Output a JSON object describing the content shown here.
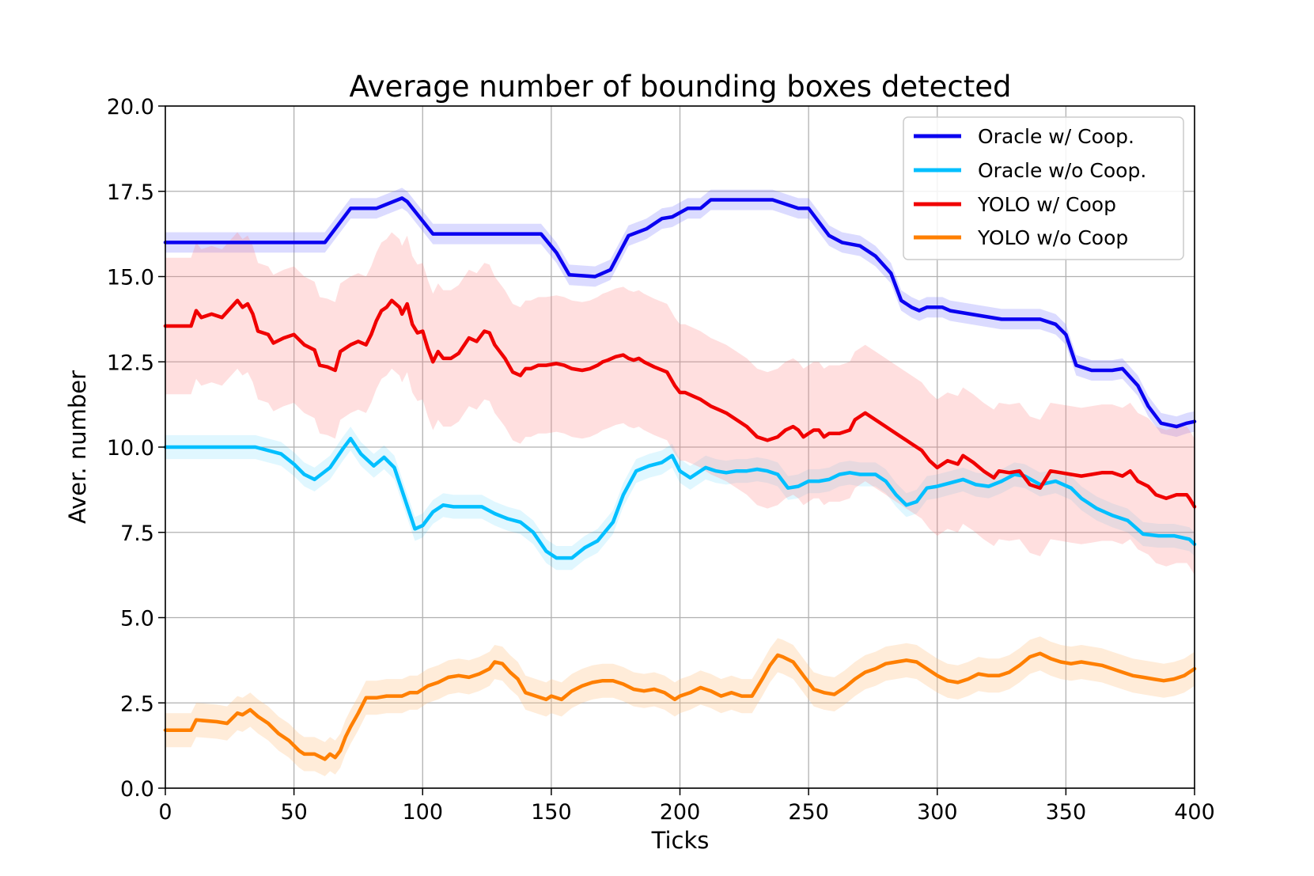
{
  "chart_data": {
    "type": "line",
    "title": "Average number of bounding boxes detected",
    "xlabel": "Ticks",
    "ylabel": "Aver. number",
    "xlim": [
      0,
      400
    ],
    "ylim": [
      0,
      20
    ],
    "xticks": [
      0,
      50,
      100,
      150,
      200,
      250,
      300,
      350,
      400
    ],
    "xtick_labels": [
      "0",
      "50",
      "100",
      "150",
      "200",
      "250",
      "300",
      "350",
      "400"
    ],
    "yticks": [
      0,
      2.5,
      5,
      7.5,
      10,
      12.5,
      15,
      17.5,
      20
    ],
    "ytick_labels": [
      "0.0",
      "2.5",
      "5.0",
      "7.5",
      "10.0",
      "12.5",
      "15.0",
      "17.5",
      "20.0"
    ],
    "grid": true,
    "legend_position": "top-right",
    "series": [
      {
        "name": "Oracle w/ Coop.",
        "color": "#0a00f0",
        "band_color": "#7070ff",
        "band_opacity": 0.25,
        "x": [
          0,
          62,
          72,
          82,
          92,
          94,
          104,
          110,
          140,
          146,
          152,
          157,
          167,
          173,
          180,
          187,
          193,
          197,
          203,
          208,
          212,
          220,
          236,
          246,
          250,
          258,
          263,
          270,
          276,
          282,
          286,
          290,
          293,
          296,
          302,
          305,
          325,
          334,
          340,
          346,
          350,
          354,
          360,
          368,
          372,
          378,
          382,
          387,
          393,
          397,
          400
        ],
        "y": [
          16,
          16,
          17,
          17,
          17.3,
          17.2,
          16.25,
          16.25,
          16.25,
          16.25,
          15.7,
          15.05,
          15,
          15.2,
          16.2,
          16.4,
          16.7,
          16.75,
          17,
          17,
          17.25,
          17.25,
          17.25,
          17,
          17,
          16.2,
          16,
          15.9,
          15.6,
          15.1,
          14.3,
          14.1,
          14,
          14.1,
          14.1,
          14,
          13.75,
          13.75,
          13.75,
          13.6,
          13.3,
          12.4,
          12.25,
          12.25,
          12.3,
          11.8,
          11.2,
          10.7,
          10.6,
          10.7,
          10.75
        ],
        "band": [
          0.3
        ]
      },
      {
        "name": "Oracle w/o Coop.",
        "color": "#00bfff",
        "band_color": "#00bfff",
        "band_opacity": 0.12,
        "x": [
          0,
          35,
          45,
          50,
          54,
          58,
          64,
          69,
          72,
          76,
          81,
          85,
          89,
          93,
          97,
          100,
          104,
          108,
          112,
          118,
          123,
          128,
          133,
          138,
          143,
          148,
          152,
          158,
          163,
          168,
          174,
          178,
          183,
          188,
          193,
          197,
          200,
          204,
          210,
          214,
          218,
          222,
          226,
          230,
          234,
          238,
          242,
          246,
          250,
          254,
          258,
          262,
          266,
          270,
          276,
          280,
          284,
          288,
          292,
          296,
          300,
          305,
          310,
          315,
          320,
          325,
          330,
          334,
          340,
          346,
          352,
          356,
          362,
          368,
          374,
          380,
          386,
          392,
          398,
          400
        ],
        "y": [
          10,
          10,
          9.8,
          9.5,
          9.2,
          9.05,
          9.4,
          9.95,
          10.25,
          9.8,
          9.45,
          9.7,
          9.4,
          8.5,
          7.6,
          7.7,
          8.1,
          8.3,
          8.25,
          8.25,
          8.25,
          8.05,
          7.9,
          7.8,
          7.5,
          6.95,
          6.75,
          6.75,
          7.05,
          7.25,
          7.8,
          8.6,
          9.3,
          9.45,
          9.55,
          9.75,
          9.3,
          9.1,
          9.4,
          9.3,
          9.25,
          9.3,
          9.3,
          9.35,
          9.3,
          9.2,
          8.8,
          8.85,
          9,
          9,
          9.05,
          9.2,
          9.25,
          9.2,
          9.2,
          9,
          8.6,
          8.3,
          8.4,
          8.8,
          8.85,
          8.95,
          9.05,
          8.9,
          8.85,
          9,
          9.2,
          9.15,
          8.9,
          9,
          8.8,
          8.5,
          8.2,
          8,
          7.85,
          7.45,
          7.4,
          7.4,
          7.3,
          7.15
        ],
        "band": [
          0.35
        ]
      },
      {
        "name": "YOLO w/ Coop",
        "color": "#f00000",
        "band_color": "#ff8080",
        "band_opacity": 0.25,
        "x": [
          0,
          10,
          12,
          14,
          18,
          22,
          28,
          30,
          32,
          34,
          36,
          40,
          42,
          46,
          50,
          54,
          58,
          60,
          63,
          66,
          68,
          72,
          75,
          78,
          80,
          82,
          84,
          86,
          88,
          91,
          92,
          94,
          96,
          98,
          100,
          102,
          104,
          106,
          108,
          111,
          114,
          118,
          121,
          124,
          126,
          128,
          130,
          132,
          135,
          138,
          140,
          142,
          145,
          148,
          152,
          155,
          158,
          162,
          165,
          168,
          170,
          172,
          175,
          178,
          180,
          182,
          184,
          186,
          190,
          195,
          198,
          200,
          202,
          205,
          208,
          210,
          212,
          215,
          218,
          222,
          226,
          230,
          234,
          238,
          241,
          244,
          246,
          248,
          250,
          252,
          254,
          256,
          258,
          262,
          266,
          268,
          272,
          276,
          280,
          282,
          286,
          290,
          294,
          297,
          300,
          304,
          308,
          310,
          314,
          318,
          322,
          324,
          328,
          332,
          336,
          340,
          344,
          348,
          352,
          356,
          360,
          364,
          368,
          372,
          375,
          378,
          382,
          385,
          389,
          393,
          397,
          398,
          400
        ],
        "y": [
          13.55,
          13.55,
          14,
          13.8,
          13.9,
          13.8,
          14.3,
          14.1,
          14.2,
          13.9,
          13.4,
          13.3,
          13.05,
          13.2,
          13.3,
          13,
          12.85,
          12.4,
          12.35,
          12.25,
          12.8,
          13,
          13.1,
          13,
          13.3,
          13.7,
          14,
          14.1,
          14.3,
          14.1,
          13.9,
          14.2,
          13.6,
          13.35,
          13.4,
          12.9,
          12.5,
          12.8,
          12.6,
          12.6,
          12.75,
          13.2,
          13.1,
          13.4,
          13.35,
          13,
          12.8,
          12.6,
          12.2,
          12.1,
          12.3,
          12.3,
          12.4,
          12.4,
          12.45,
          12.4,
          12.3,
          12.25,
          12.3,
          12.4,
          12.5,
          12.55,
          12.65,
          12.7,
          12.6,
          12.55,
          12.6,
          12.5,
          12.35,
          12.2,
          11.8,
          11.6,
          11.6,
          11.5,
          11.4,
          11.3,
          11.2,
          11.1,
          11,
          10.8,
          10.6,
          10.3,
          10.2,
          10.3,
          10.5,
          10.6,
          10.5,
          10.3,
          10.4,
          10.5,
          10.5,
          10.3,
          10.4,
          10.4,
          10.5,
          10.8,
          11,
          10.8,
          10.6,
          10.5,
          10.3,
          10.1,
          9.9,
          9.6,
          9.4,
          9.6,
          9.5,
          9.75,
          9.55,
          9.3,
          9.1,
          9.3,
          9.25,
          9.3,
          8.9,
          8.8,
          9.3,
          9.25,
          9.2,
          9.15,
          9.2,
          9.25,
          9.25,
          9.15,
          9.3,
          9,
          8.85,
          8.6,
          8.5,
          8.6,
          8.6,
          8.5,
          8.25
        ],
        "band": [
          2.0
        ]
      },
      {
        "name": "YOLO w/o Coop",
        "color": "#ff7f00",
        "band_color": "#ffc080",
        "band_opacity": 0.3,
        "x": [
          0,
          10,
          12,
          20,
          24,
          28,
          30,
          33,
          36,
          40,
          44,
          48,
          52,
          54,
          58,
          62,
          64,
          66,
          68,
          70,
          72,
          75,
          78,
          82,
          86,
          92,
          95,
          98,
          102,
          106,
          110,
          114,
          118,
          122,
          126,
          128,
          131,
          134,
          137,
          140,
          144,
          148,
          150,
          154,
          158,
          162,
          166,
          170,
          174,
          178,
          182,
          186,
          190,
          194,
          198,
          200,
          204,
          208,
          212,
          216,
          220,
          224,
          228,
          232,
          235,
          238,
          240,
          244,
          248,
          252,
          256,
          260,
          264,
          268,
          272,
          276,
          280,
          284,
          288,
          292,
          296,
          300,
          304,
          308,
          312,
          316,
          320,
          324,
          328,
          332,
          336,
          340,
          344,
          348,
          352,
          356,
          360,
          364,
          368,
          372,
          376,
          380,
          384,
          388,
          392,
          396,
          400
        ],
        "y": [
          1.7,
          1.7,
          2,
          1.95,
          1.9,
          2.2,
          2.15,
          2.3,
          2.1,
          1.9,
          1.6,
          1.4,
          1.1,
          1,
          1,
          0.85,
          1,
          0.9,
          1.1,
          1.5,
          1.8,
          2.2,
          2.65,
          2.65,
          2.7,
          2.7,
          2.8,
          2.8,
          3,
          3.1,
          3.25,
          3.3,
          3.25,
          3.35,
          3.5,
          3.7,
          3.65,
          3.4,
          3.2,
          2.8,
          2.7,
          2.6,
          2.7,
          2.6,
          2.85,
          3,
          3.1,
          3.15,
          3.15,
          3.05,
          2.9,
          2.85,
          2.9,
          2.8,
          2.6,
          2.7,
          2.8,
          2.95,
          2.85,
          2.7,
          2.8,
          2.7,
          2.7,
          3.2,
          3.6,
          3.9,
          3.85,
          3.7,
          3.3,
          2.9,
          2.8,
          2.75,
          2.95,
          3.2,
          3.4,
          3.5,
          3.65,
          3.7,
          3.75,
          3.7,
          3.5,
          3.3,
          3.15,
          3.1,
          3.2,
          3.35,
          3.3,
          3.3,
          3.4,
          3.6,
          3.85,
          3.95,
          3.8,
          3.7,
          3.65,
          3.7,
          3.65,
          3.6,
          3.5,
          3.4,
          3.3,
          3.25,
          3.2,
          3.15,
          3.2,
          3.3,
          3.5
        ],
        "band": [
          0.5
        ]
      }
    ]
  }
}
